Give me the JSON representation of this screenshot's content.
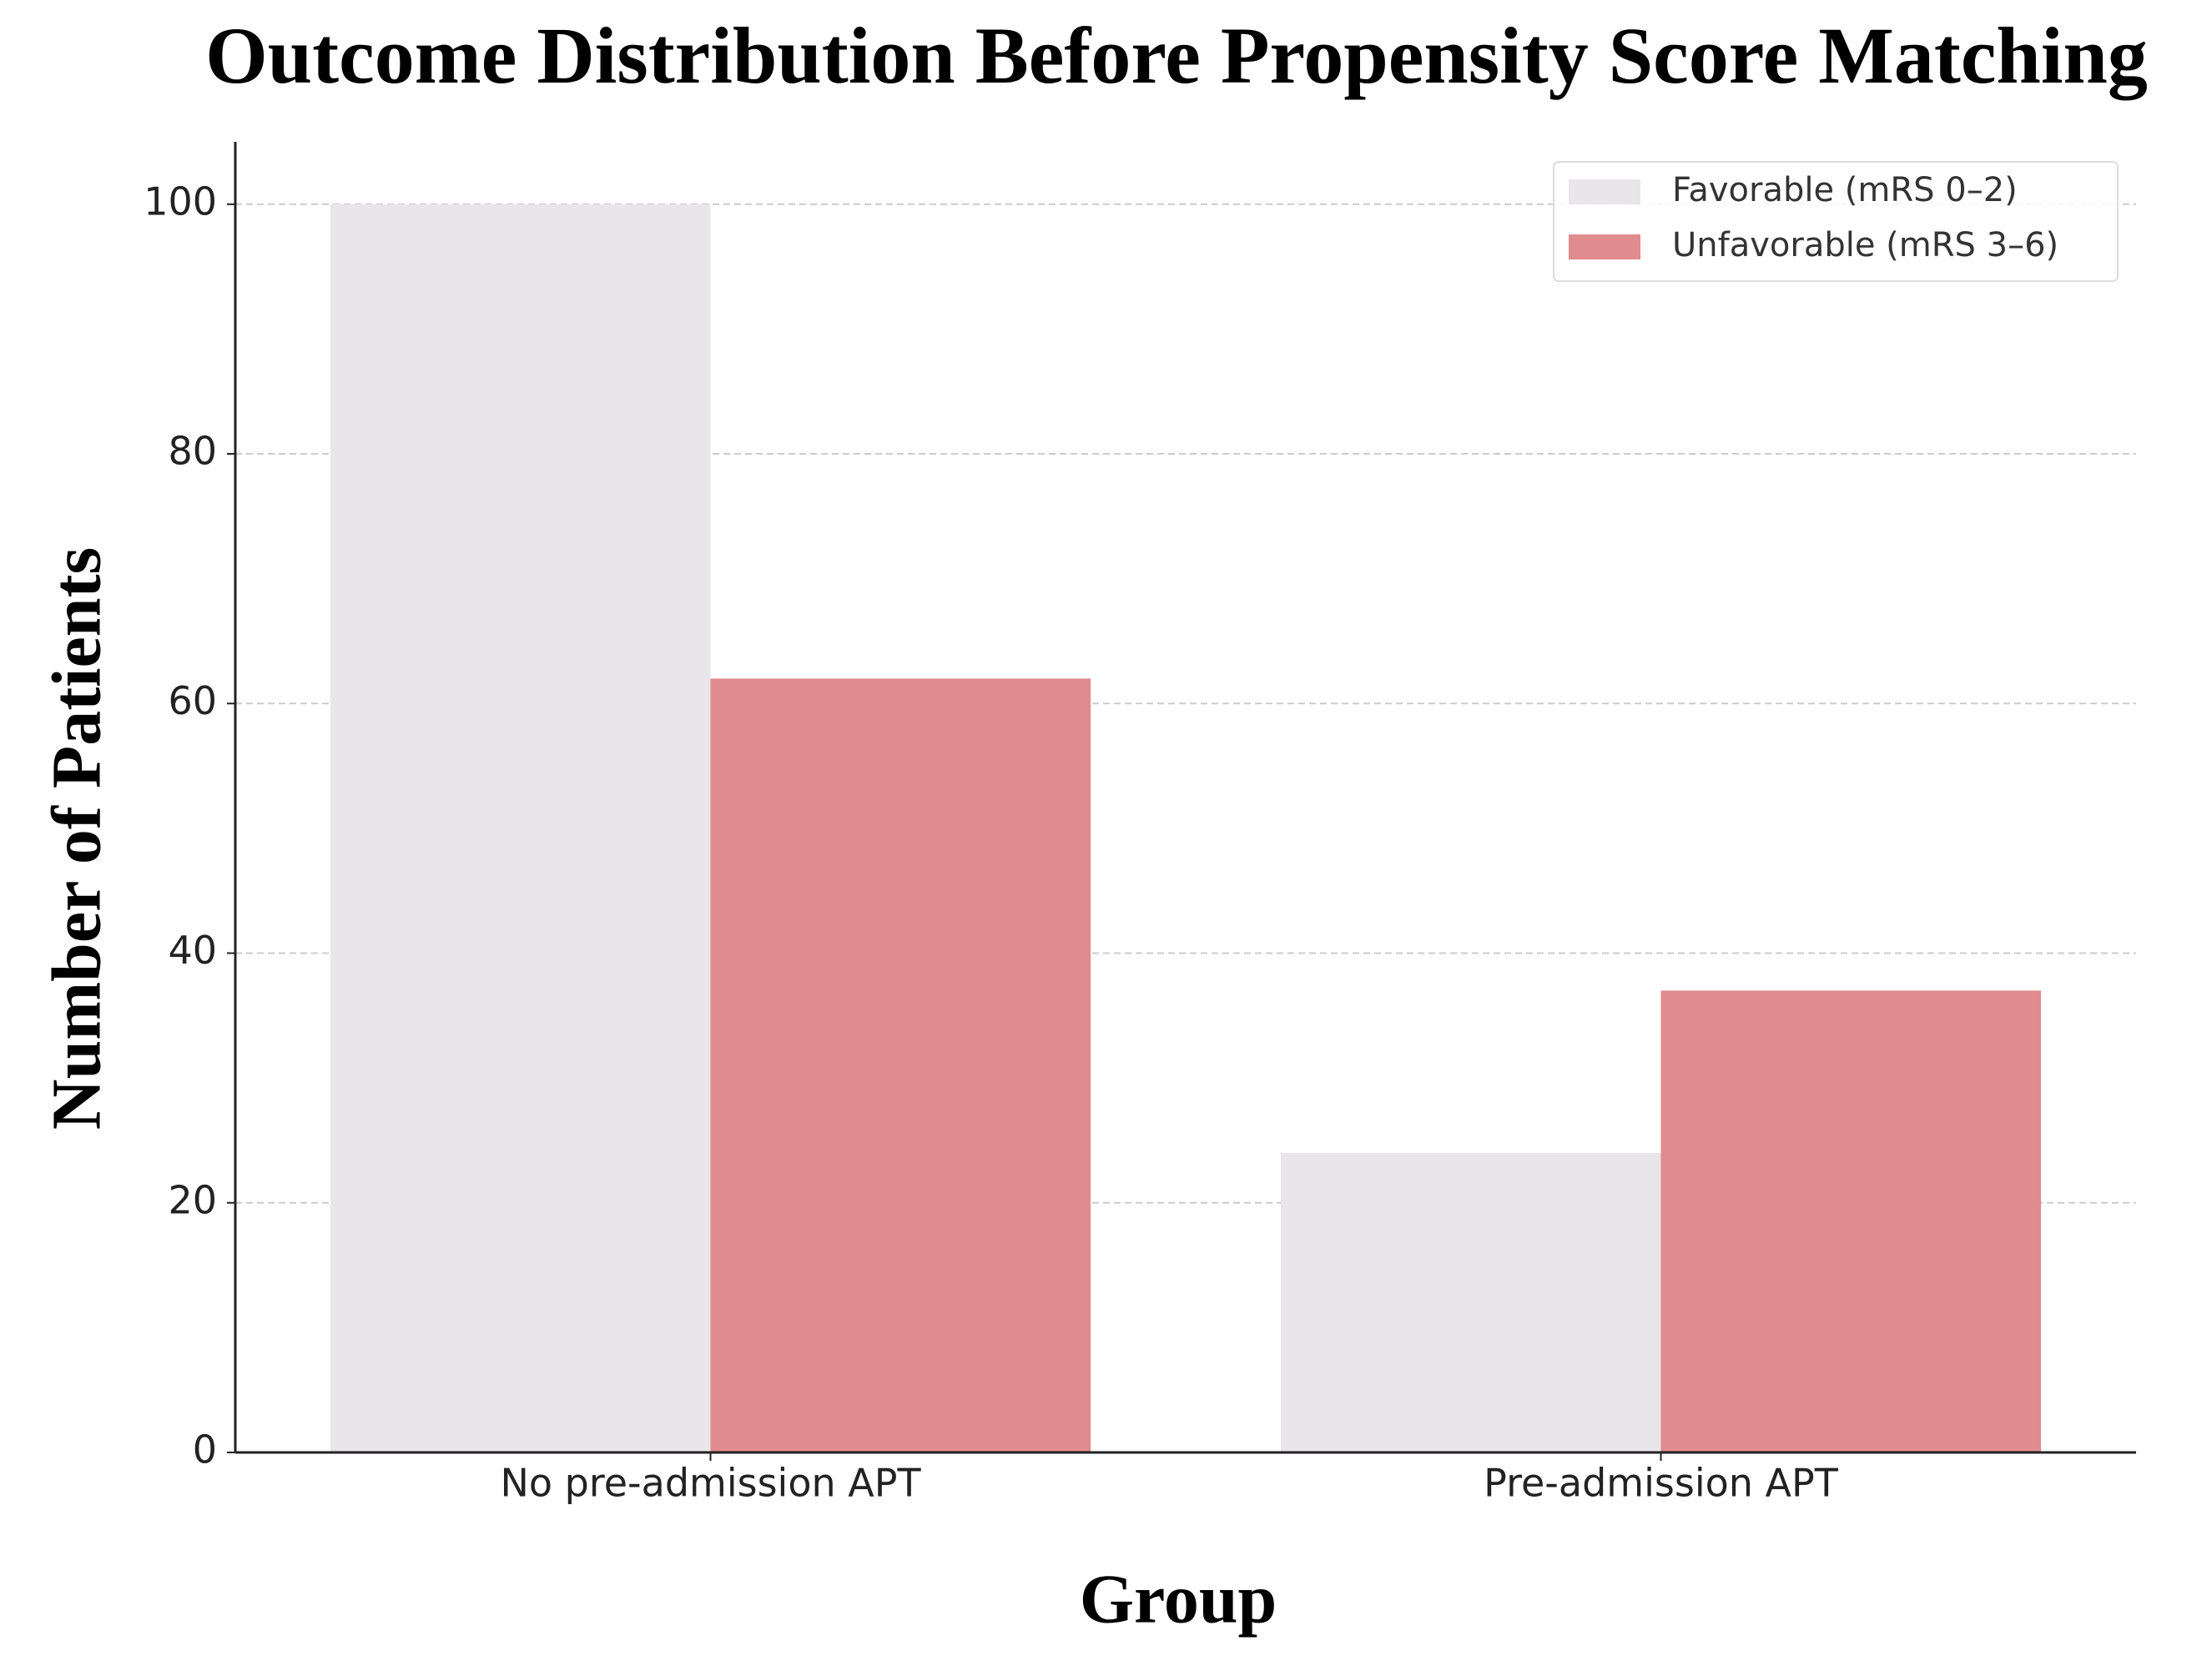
{
  "chart_data": {
    "type": "bar",
    "title": "Outcome Distribution Before Propensity Score Matching",
    "x_label": "Group",
    "y_label": "Number of Patients",
    "categories": [
      "No pre-admission APT",
      "Pre-admission APT"
    ],
    "series": [
      {
        "name": "Favorable (mRS 0–2)",
        "color": "#e8e6e9",
        "values": [
          100,
          24
        ]
      },
      {
        "name": "Unfavorable (mRS 3–6)",
        "color": "#e08b8e",
        "values": [
          62,
          37
        ]
      }
    ],
    "ylim": [
      0,
      105
    ],
    "yticks": [
      0,
      20,
      40,
      60,
      80,
      100
    ],
    "grid": true,
    "legend": "upper right"
  }
}
